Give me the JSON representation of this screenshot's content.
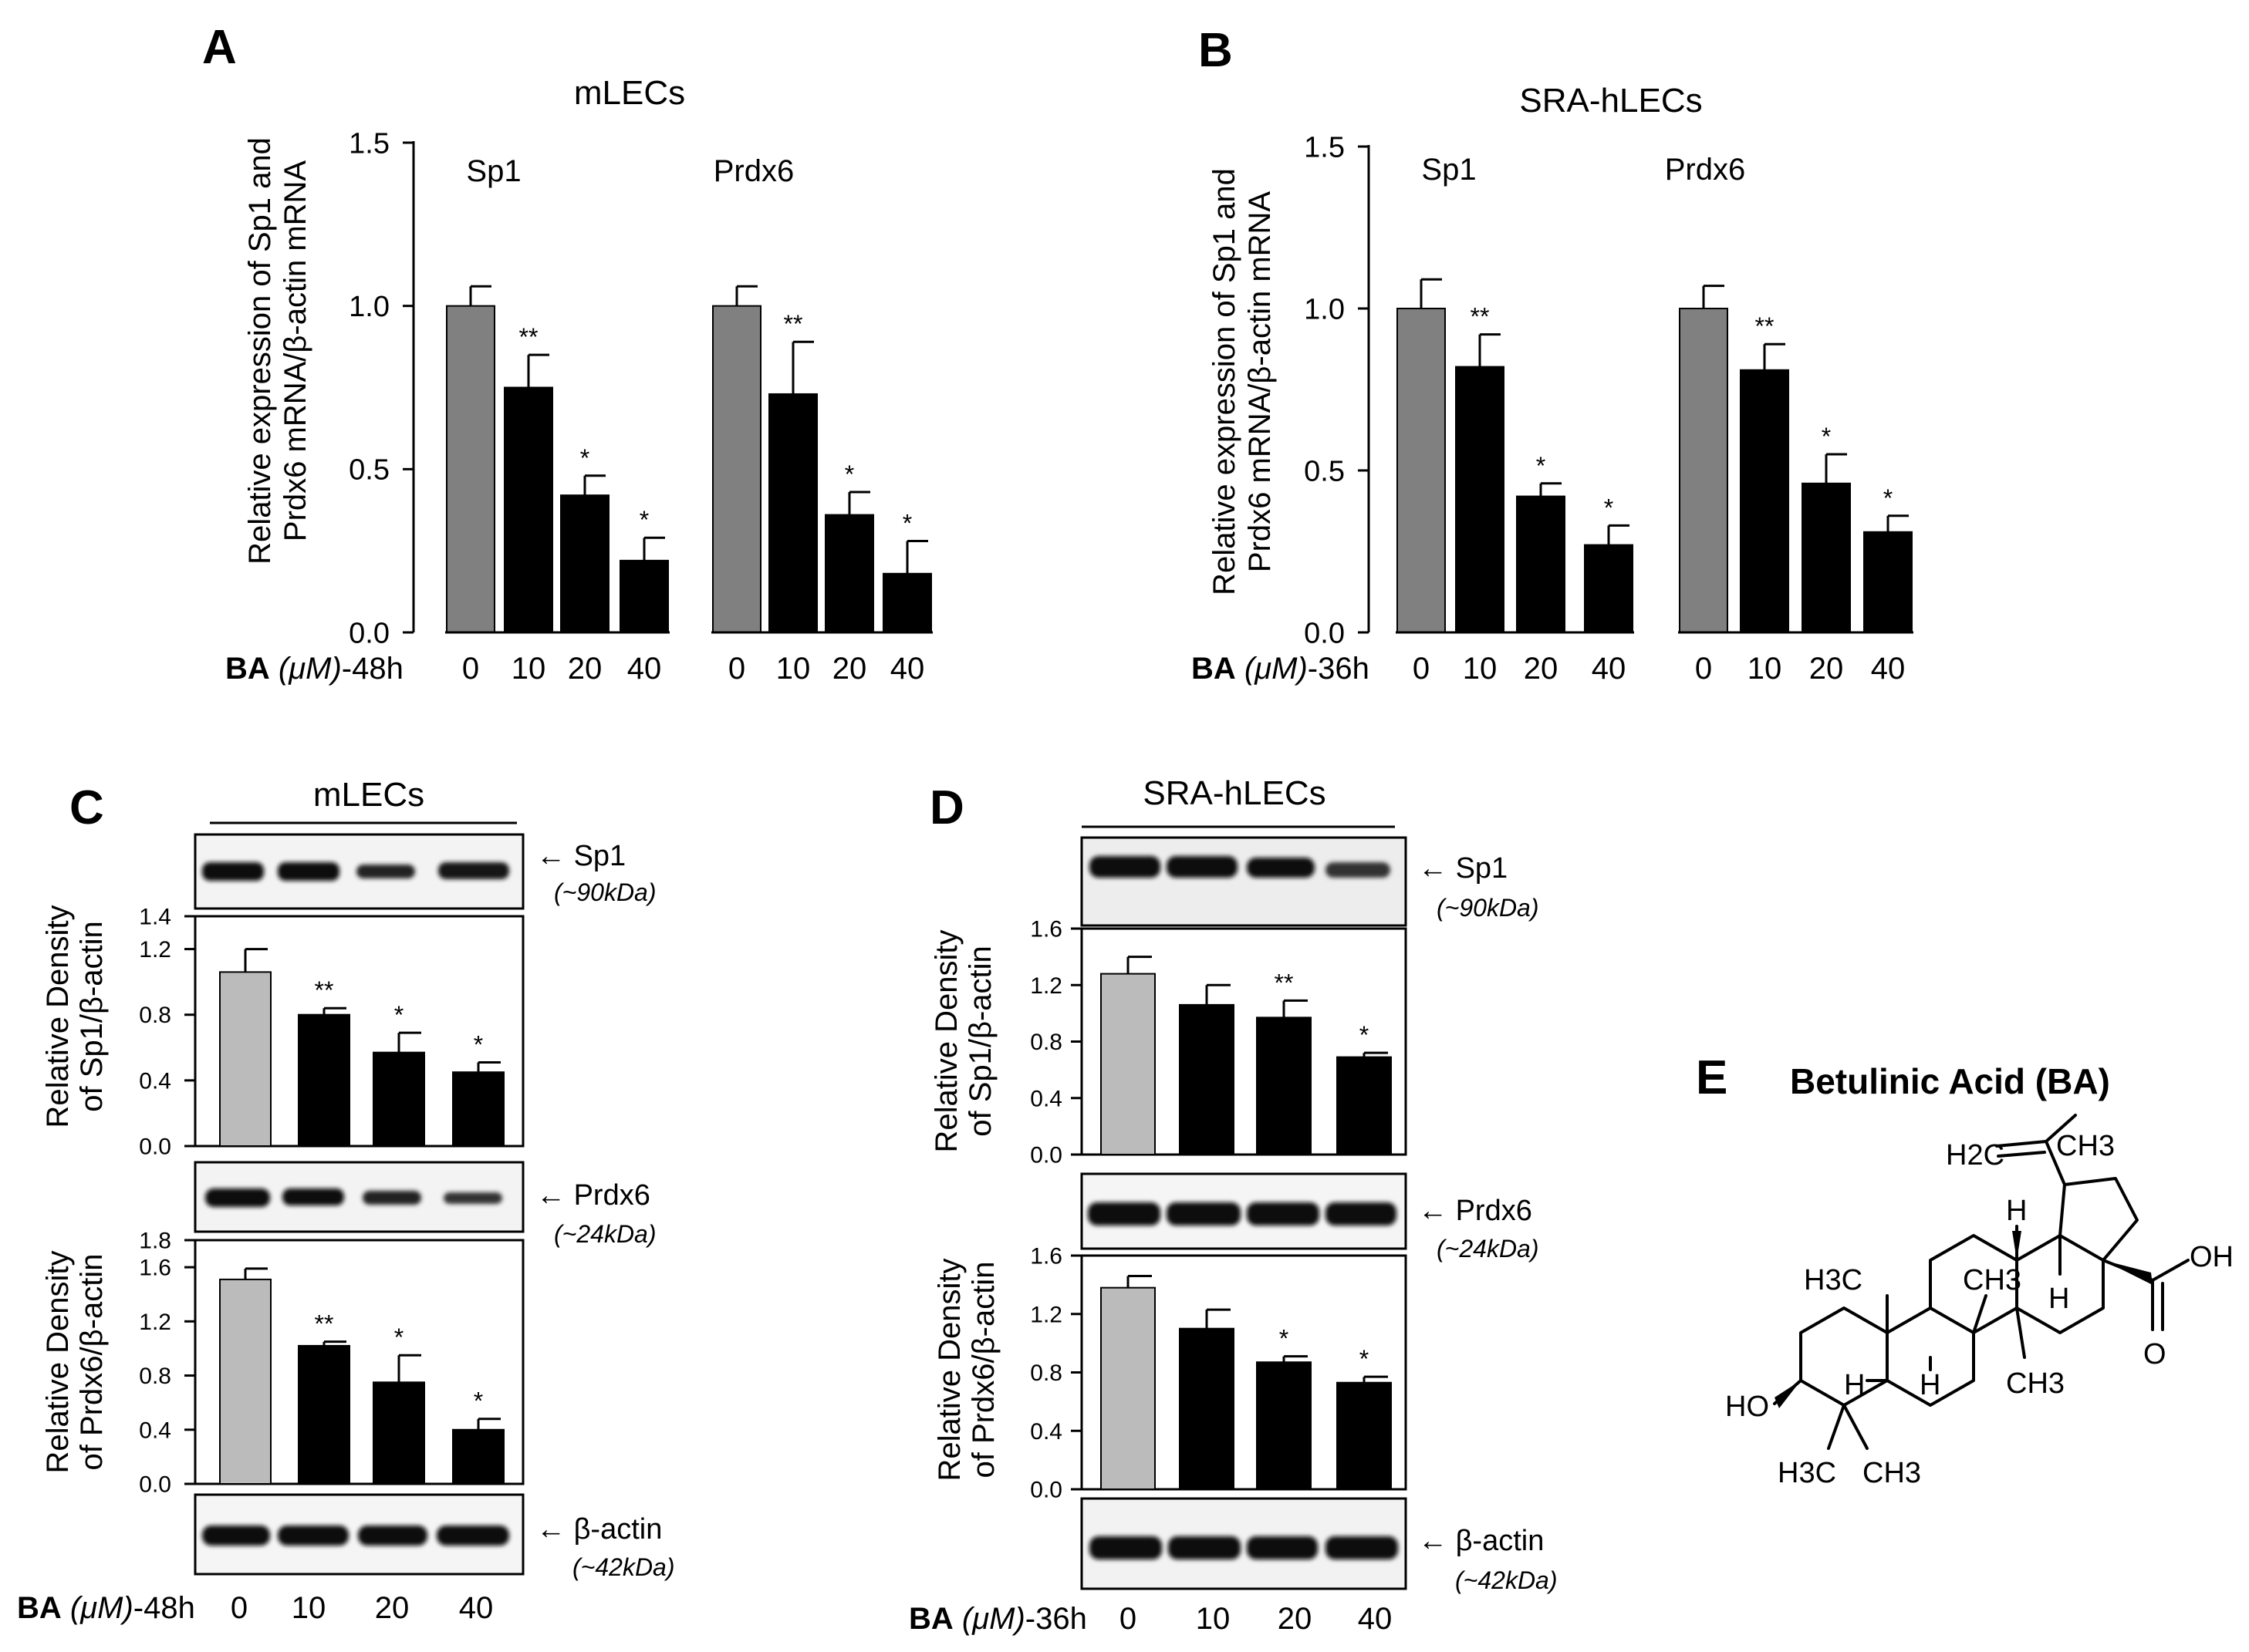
{
  "panels": {
    "A": {
      "letter": "A",
      "title": "mLECs",
      "ylabel_line1": "Relative expression of  Sp1 and",
      "ylabel_line2": "Prdx6 mRNA/β-actin mRNA",
      "groups": [
        "Sp1",
        "Prdx6"
      ],
      "treatment_label": {
        "bold": "BA",
        "unit": "(μM)",
        "time": "-48h"
      }
    },
    "B": {
      "letter": "B",
      "title": "SRA-hLECs",
      "ylabel_line1": "Relative expression of  Sp1 and",
      "ylabel_line2": "Prdx6 mRNA/β-actin mRNA",
      "groups": [
        "Sp1",
        "Prdx6"
      ],
      "treatment_label": {
        "bold": "BA",
        "unit": "(μM)",
        "time": "-36h"
      }
    },
    "C": {
      "letter": "C",
      "title": "mLECs",
      "ylabel_sp1_line1": "Relative Density",
      "ylabel_sp1_line2": "of Sp1/β-actin",
      "ylabel_prdx6_line1": "Relative Density",
      "ylabel_prdx6_line2": "of Prdx6/β-actin",
      "treatment_label": {
        "bold": "BA",
        "unit": "(μM)",
        "time": "-48h"
      }
    },
    "D": {
      "letter": "D",
      "title": "SRA-hLECs",
      "ylabel_sp1_line1": "Relative Density",
      "ylabel_sp1_line2": "of Sp1/β-actin",
      "ylabel_prdx6_line1": "Relative Density",
      "ylabel_prdx6_line2": "of Prdx6/β-actin",
      "treatment_label": {
        "bold": "BA",
        "unit": "(μM)",
        "time": "-36h"
      }
    },
    "E": {
      "letter": "E",
      "title": "Betulinic Acid (BA)"
    }
  },
  "blots": {
    "sp1": {
      "name": "Sp1",
      "kda": "(~90kDa)"
    },
    "prdx6": {
      "name": "Prdx6",
      "kda": "(~24kDa)"
    },
    "actin": {
      "name": "β-actin",
      "kda": "(~42kDa)"
    }
  },
  "chemistry": {
    "labels": [
      "CH3",
      "H2C",
      "H",
      "H",
      "H3C",
      "CH3",
      "OH",
      "O",
      "H",
      "H",
      "CH3",
      "HO",
      "H3C",
      "CH3"
    ]
  },
  "colors": {
    "control_dark": "#808080",
    "control_light": "#bbbbbb",
    "treated": "#000000"
  },
  "chart_data": [
    {
      "id": "A",
      "type": "bar",
      "title": "mLECs",
      "categories": [
        "0",
        "10",
        "20",
        "40",
        "0",
        "10",
        "20",
        "40"
      ],
      "values": [
        1.0,
        0.75,
        0.42,
        0.22,
        1.0,
        0.73,
        0.36,
        0.18
      ],
      "errors": [
        0.06,
        0.1,
        0.06,
        0.07,
        0.06,
        0.16,
        0.07,
        0.1
      ],
      "significance": [
        "",
        "**",
        "*",
        "*",
        "",
        "**",
        "*",
        "*"
      ],
      "yticks": [
        "0.0",
        "0.5",
        "1.0",
        "1.5"
      ],
      "ylim": [
        0,
        1.5
      ]
    },
    {
      "id": "B",
      "type": "bar",
      "title": "SRA-hLECs",
      "categories": [
        "0",
        "10",
        "20",
        "40",
        "0",
        "10",
        "20",
        "40"
      ],
      "values": [
        1.0,
        0.82,
        0.42,
        0.27,
        1.0,
        0.81,
        0.46,
        0.31
      ],
      "errors": [
        0.09,
        0.1,
        0.04,
        0.06,
        0.07,
        0.08,
        0.09,
        0.05
      ],
      "significance": [
        "",
        "**",
        "*",
        "*",
        "",
        "**",
        "*",
        "*"
      ],
      "yticks": [
        "0.0",
        "0.5",
        "1.0",
        "1.5"
      ],
      "ylim": [
        0,
        1.5
      ]
    },
    {
      "id": "C1",
      "type": "bar",
      "categories": [
        "0",
        "10",
        "20",
        "40"
      ],
      "values": [
        1.06,
        0.8,
        0.57,
        0.45
      ],
      "errors": [
        0.14,
        0.04,
        0.12,
        0.06
      ],
      "significance": [
        "",
        "**",
        "*",
        "*"
      ],
      "yticks": [
        "0.0",
        "0.4",
        "0.8",
        "1.2",
        "1.4"
      ],
      "ylim": [
        0,
        1.4
      ]
    },
    {
      "id": "C2",
      "type": "bar",
      "categories": [
        "0",
        "10",
        "20",
        "40"
      ],
      "values": [
        1.51,
        1.02,
        0.75,
        0.4
      ],
      "errors": [
        0.08,
        0.03,
        0.2,
        0.08
      ],
      "significance": [
        "",
        "**",
        "*",
        "*"
      ],
      "yticks": [
        "0.0",
        "0.4",
        "0.8",
        "1.2",
        "1.6",
        "1.8"
      ],
      "ylim": [
        0,
        1.8
      ]
    },
    {
      "id": "D1",
      "type": "bar",
      "categories": [
        "0",
        "10",
        "20",
        "40"
      ],
      "values": [
        1.28,
        1.06,
        0.97,
        0.69
      ],
      "errors": [
        0.12,
        0.14,
        0.12,
        0.03
      ],
      "significance": [
        "",
        "",
        "**",
        "*"
      ],
      "yticks": [
        "0.0",
        "0.4",
        "0.8",
        "1.2",
        "1.6"
      ],
      "ylim": [
        0,
        1.6
      ]
    },
    {
      "id": "D2",
      "type": "bar",
      "categories": [
        "0",
        "10",
        "20",
        "40"
      ],
      "values": [
        1.38,
        1.1,
        0.87,
        0.73
      ],
      "errors": [
        0.08,
        0.13,
        0.04,
        0.04
      ],
      "significance": [
        "",
        "",
        "*",
        "*"
      ],
      "yticks": [
        "0.0",
        "0.4",
        "0.8",
        "1.2",
        "1.6"
      ],
      "ylim": [
        0,
        1.6
      ]
    }
  ]
}
